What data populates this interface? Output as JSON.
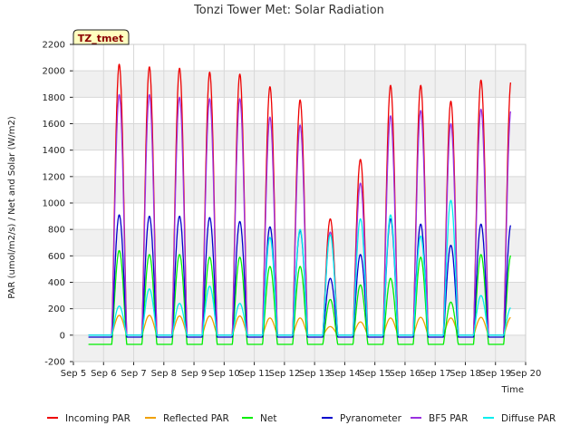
{
  "chart_data": {
    "type": "line",
    "title": "Tonzi Tower Met: Solar Radiation",
    "xlabel": "Time",
    "ylabel": "PAR (umol/m2/s) / Net and Solar (W/m2)",
    "tag": "TZ_tmet",
    "ylim": [
      -200,
      2200
    ],
    "yticks": [
      -200,
      0,
      200,
      400,
      600,
      800,
      1000,
      1200,
      1400,
      1600,
      1800,
      2000,
      2200
    ],
    "xlim": [
      5,
      20
    ],
    "xticks": [
      5,
      6,
      7,
      8,
      9,
      10,
      11,
      12,
      13,
      14,
      15,
      16,
      17,
      18,
      19,
      20
    ],
    "xtick_labels": [
      "Sep 5",
      "Sep 6",
      "Sep 7",
      "Sep 8",
      "Sep 9",
      "Sep 10",
      "Sep 11",
      "Sep 12",
      "Sep 13",
      "Sep 14",
      "Sep 15",
      "Sep 16",
      "Sep 17",
      "Sep 18",
      "Sep 19",
      "Sep 20"
    ],
    "data_range": [
      5.5,
      19.5
    ],
    "grid": true,
    "background_bands": true,
    "legend_position": "bottom",
    "series_note": "Daily diurnal curves; values are daily peak maxima and night baselines",
    "series": [
      {
        "name": "Incoming PAR",
        "color": "#ee0000",
        "night": 0,
        "peaks": [
          2050,
          2030,
          2020,
          1990,
          1975,
          1880,
          1780,
          880,
          1330,
          1890,
          1890,
          1770,
          1930,
          1930
        ]
      },
      {
        "name": "Reflected PAR",
        "color": "#f0a000",
        "night": 0,
        "peaks": [
          150,
          150,
          145,
          145,
          145,
          130,
          130,
          65,
          100,
          130,
          135,
          130,
          135,
          135
        ]
      },
      {
        "name": "Net",
        "color": "#00ee00",
        "night": -70,
        "peaks": [
          640,
          610,
          610,
          590,
          590,
          520,
          520,
          270,
          380,
          430,
          590,
          250,
          610,
          610
        ]
      },
      {
        "name": "Pyranometer",
        "color": "#0000cc",
        "night": -15,
        "peaks": [
          910,
          900,
          900,
          890,
          860,
          820,
          790,
          430,
          610,
          880,
          840,
          680,
          840,
          840
        ]
      },
      {
        "name": "BF5 PAR",
        "color": "#9a30e0",
        "night": 0,
        "peaks": [
          1820,
          1820,
          1800,
          1790,
          1790,
          1650,
          1590,
          780,
          1150,
          1660,
          1700,
          1600,
          1710,
          1710
        ]
      },
      {
        "name": "Diffuse PAR",
        "color": "#00eeee",
        "night": 0,
        "peaks": [
          220,
          350,
          240,
          370,
          240,
          740,
          800,
          760,
          880,
          910,
          750,
          1020,
          300,
          210
        ]
      }
    ]
  }
}
